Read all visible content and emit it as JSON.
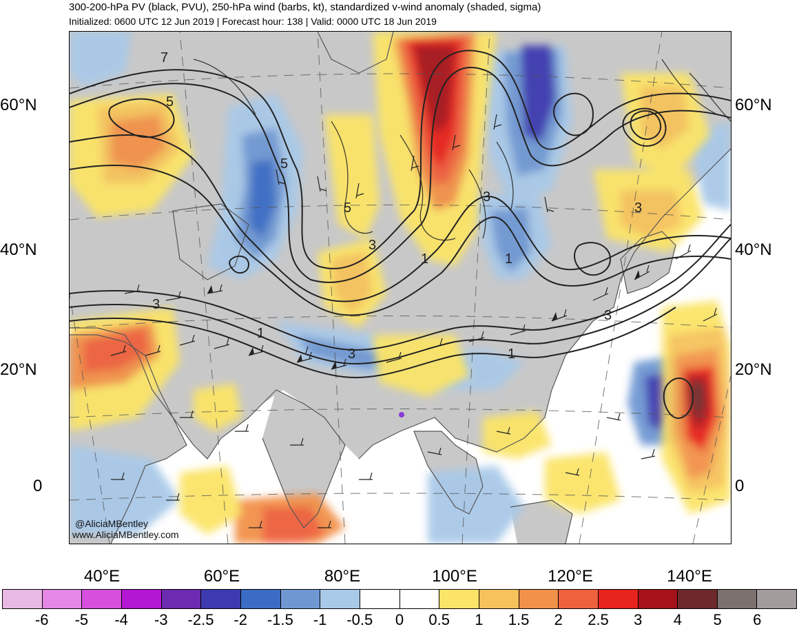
{
  "title": "300-200-hPa PV (black, PVU), 250-hPa wind (barbs, kt), standardized v-wind anomaly (shaded, sigma)",
  "subtitle": "Initialized: 0600 UTC 12 Jun 2019 | Forecast hour: 138 | Valid: 0000 UTC 18 Jun 2019",
  "credits": {
    "twitter": "@AliciaMBentley",
    "website": "www.AliciaMBentley.com"
  },
  "latitude_labels": [
    "60°N",
    "40°N",
    "20°N",
    "0"
  ],
  "longitude_labels": [
    "40°E",
    "60°E",
    "80°E",
    "100°E",
    "120°E",
    "140°E"
  ],
  "pv_contour_labels": [
    "7",
    "5",
    "5",
    "5",
    "3",
    "3",
    "3",
    "3",
    "3",
    "3",
    "1",
    "1",
    "1",
    "1"
  ],
  "colorbar": {
    "labels": [
      "-6",
      "-5",
      "-4",
      "-3",
      "-2.5",
      "-2",
      "-1.5",
      "-1",
      "-0.5",
      "0",
      "0.5",
      "1",
      "1.5",
      "2",
      "2.5",
      "3",
      "4",
      "5",
      "6"
    ],
    "colors": [
      "#e9b9e6",
      "#e587e5",
      "#d64fdd",
      "#b317d2",
      "#6c2bb0",
      "#3d3ab0",
      "#3b6cc4",
      "#6f98d3",
      "#a9c9e8",
      "#ffffff",
      "#ffffff",
      "#fbe468",
      "#f6c25b",
      "#f2914a",
      "#ee613d",
      "#e7231d",
      "#a6121a",
      "#6e2a2a",
      "#7c716e",
      "#a39c9c"
    ]
  },
  "colors": {
    "land": "#c9c9c9",
    "ocean": "#ffffff",
    "contour": "#222222",
    "coastline": "#555555"
  }
}
